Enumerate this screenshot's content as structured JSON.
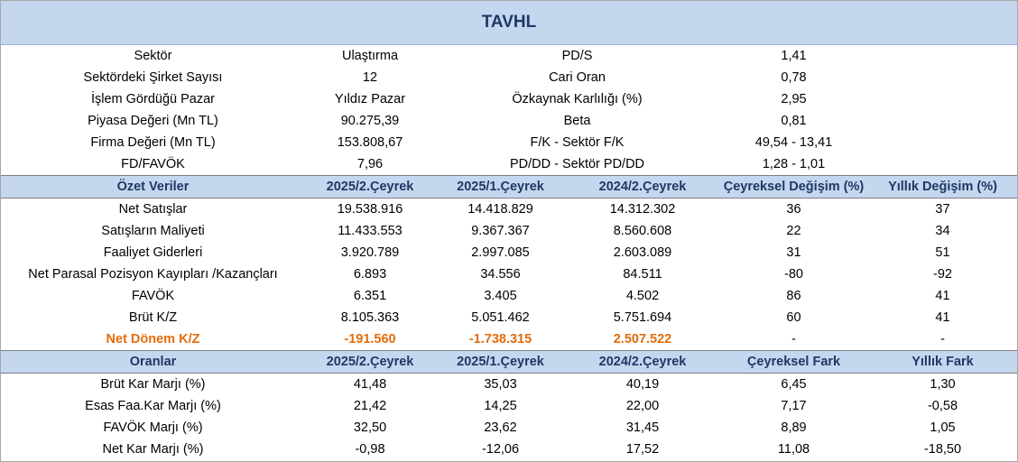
{
  "title": "TAVHL",
  "info": [
    {
      "label": "Sektör",
      "value": "Ulaştırma",
      "label2": "PD/S",
      "value2": "1,41"
    },
    {
      "label": "Sektördeki Şirket Sayısı",
      "value": "12",
      "label2": "Cari Oran",
      "value2": "0,78"
    },
    {
      "label": "İşlem Gördüğü Pazar",
      "value": "Yıldız Pazar",
      "label2": "Özkaynak Karlılığı  (%)",
      "value2": "2,95"
    },
    {
      "label": "Piyasa Değeri (Mn TL)",
      "value": "90.275,39",
      "label2": "Beta",
      "value2": "0,81"
    },
    {
      "label": "Firma Değeri (Mn TL)",
      "value": "153.808,67",
      "label2": "F/K - Sektör F/K",
      "value2": "49,54 - 13,41"
    },
    {
      "label": "FD/FAVÖK",
      "value": "7,96",
      "label2": "PD/DD - Sektör PD/DD",
      "value2": "1,28 - 1,01"
    }
  ],
  "summary": {
    "headers": [
      "Özet Veriler",
      "2025/2.Çeyrek",
      "2025/1.Çeyrek",
      "2024/2.Çeyrek",
      "Çeyreksel Değişim (%)",
      "Yıllık Değişim (%)"
    ],
    "rows": [
      [
        "Net Satışlar",
        "19.538.916",
        "14.418.829",
        "14.312.302",
        "36",
        "37"
      ],
      [
        "Satışların Maliyeti",
        "11.433.553",
        "9.367.367",
        "8.560.608",
        "22",
        "34"
      ],
      [
        "Faaliyet Giderleri",
        "3.920.789",
        "2.997.085",
        "2.603.089",
        "31",
        "51"
      ],
      [
        "Net Parasal Pozisyon Kayıpları /Kazançları",
        "6.893",
        "34.556",
        "84.511",
        "-80",
        "-92"
      ],
      [
        "FAVÖK",
        "6.351",
        "3.405",
        "4.502",
        "86",
        "41"
      ],
      [
        "Brüt K/Z",
        "8.105.363",
        "5.051.462",
        "5.751.694",
        "60",
        "41"
      ],
      [
        "Net Dönem K/Z",
        "-191.560",
        "-1.738.315",
        "2.507.522",
        "-",
        "-"
      ]
    ],
    "highlight_color": "#e46c0a"
  },
  "ratios": {
    "headers": [
      "Oranlar",
      "2025/2.Çeyrek",
      "2025/1.Çeyrek",
      "2024/2.Çeyrek",
      "Çeyreksel Fark",
      "Yıllık Fark"
    ],
    "rows": [
      [
        "Brüt Kar Marjı (%)",
        "41,48",
        "35,03",
        "40,19",
        "6,45",
        "1,30"
      ],
      [
        "Esas Faa.Kar Marjı (%)",
        "21,42",
        "14,25",
        "22,00",
        "7,17",
        "-0,58"
      ],
      [
        "FAVÖK Marjı (%)",
        "32,50",
        "23,62",
        "31,45",
        "8,89",
        "1,05"
      ],
      [
        "Net Kar Marjı (%)",
        "-0,98",
        "-12,06",
        "17,52",
        "11,08",
        "-18,50"
      ]
    ]
  },
  "colors": {
    "header_bg": "#c5d7ef",
    "header_text": "#1f3864"
  }
}
